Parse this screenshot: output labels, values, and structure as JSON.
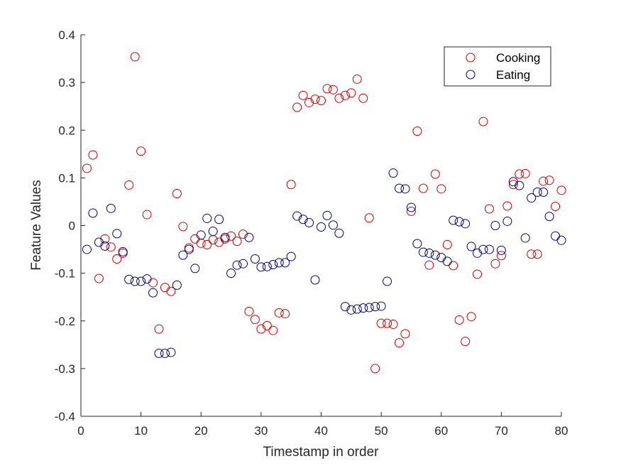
{
  "chart_data": {
    "type": "scatter",
    "title": "",
    "xlabel": "Timestamp in order",
    "ylabel": "Feature Values",
    "xlim": [
      0,
      80
    ],
    "ylim": [
      -0.4,
      0.4
    ],
    "xticks": [
      0,
      10,
      20,
      30,
      40,
      50,
      60,
      70,
      80
    ],
    "yticks": [
      -0.4,
      -0.3,
      -0.2,
      -0.1,
      0,
      0.1,
      0.2,
      0.3,
      0.4
    ],
    "xtick_labels": [
      "0",
      "10",
      "20",
      "30",
      "40",
      "50",
      "60",
      "70",
      "80"
    ],
    "ytick_labels": [
      "-0.4",
      "-0.3",
      "-0.2",
      "-0.1",
      "0",
      "0.1",
      "0.2",
      "0.3",
      "0.4"
    ],
    "grid": false,
    "legend_position": "top-right",
    "marker": "open-circle",
    "series": [
      {
        "name": "Cooking",
        "color": "#cc0000",
        "x": [
          1,
          2,
          3,
          4,
          5,
          6,
          7,
          8,
          9,
          10,
          11,
          12,
          13,
          14,
          15,
          16,
          17,
          18,
          19,
          20,
          21,
          22,
          23,
          24,
          25,
          26,
          27,
          28,
          29,
          30,
          31,
          32,
          33,
          34,
          35,
          36,
          37,
          38,
          39,
          40,
          41,
          42,
          43,
          44,
          45,
          46,
          47,
          48,
          49,
          50,
          51,
          52,
          53,
          54,
          55,
          56,
          57,
          58,
          59,
          60,
          61,
          62,
          63,
          64,
          65,
          66,
          67,
          68,
          69,
          70,
          71,
          72,
          73,
          74,
          75,
          76,
          77,
          78,
          79,
          80
        ],
        "y": [
          0.12,
          0.148,
          -0.111,
          -0.028,
          -0.045,
          -0.07,
          -0.058,
          0.085,
          0.354,
          0.156,
          0.023,
          -0.12,
          -0.217,
          -0.13,
          -0.138,
          0.067,
          -0.002,
          -0.047,
          -0.028,
          -0.037,
          -0.04,
          -0.03,
          -0.035,
          -0.028,
          -0.022,
          -0.033,
          -0.018,
          -0.18,
          -0.197,
          -0.217,
          -0.21,
          -0.22,
          -0.183,
          -0.185,
          0.086,
          0.248,
          0.273,
          0.258,
          0.265,
          0.262,
          0.287,
          0.285,
          0.267,
          0.273,
          0.278,
          0.307,
          0.267,
          0.016,
          -0.3,
          -0.205,
          -0.205,
          -0.207,
          -0.246,
          -0.227,
          0.03,
          0.198,
          0.078,
          -0.083,
          0.108,
          0.077,
          -0.04,
          -0.084,
          -0.198,
          -0.243,
          -0.191,
          -0.102,
          0.218,
          0.035,
          -0.08,
          -0.063,
          0.041,
          0.086,
          0.108,
          0.109,
          -0.06,
          -0.06,
          0.093,
          0.095,
          0.04,
          0.074
        ]
      },
      {
        "name": "Eating",
        "color": "#000080",
        "x": [
          1,
          2,
          3,
          4,
          5,
          6,
          7,
          8,
          9,
          10,
          11,
          12,
          13,
          14,
          15,
          16,
          17,
          18,
          19,
          20,
          21,
          22,
          23,
          24,
          25,
          26,
          27,
          28,
          29,
          30,
          31,
          32,
          33,
          34,
          35,
          36,
          37,
          38,
          39,
          40,
          41,
          42,
          43,
          44,
          45,
          46,
          47,
          48,
          49,
          50,
          51,
          52,
          53,
          54,
          55,
          56,
          57,
          58,
          59,
          60,
          61,
          62,
          63,
          64,
          65,
          66,
          67,
          68,
          69,
          70,
          71,
          72,
          73,
          74,
          75,
          76,
          77,
          78,
          79,
          80
        ],
        "y": [
          -0.05,
          0.026,
          -0.035,
          -0.043,
          0.036,
          -0.017,
          -0.055,
          -0.113,
          -0.117,
          -0.117,
          -0.112,
          -0.141,
          -0.268,
          -0.268,
          -0.266,
          -0.125,
          -0.062,
          -0.05,
          -0.09,
          -0.02,
          0.015,
          -0.012,
          0.013,
          -0.025,
          -0.1,
          -0.083,
          -0.08,
          -0.025,
          -0.07,
          -0.087,
          -0.086,
          -0.082,
          -0.078,
          -0.078,
          -0.065,
          0.02,
          0.013,
          0.006,
          -0.114,
          -0.003,
          0.021,
          0.001,
          -0.016,
          -0.17,
          -0.177,
          -0.175,
          -0.173,
          -0.172,
          -0.17,
          -0.169,
          -0.117,
          0.11,
          0.078,
          0.077,
          0.038,
          -0.038,
          -0.056,
          -0.058,
          -0.062,
          -0.067,
          -0.075,
          0.011,
          0.008,
          0.004,
          -0.044,
          -0.058,
          -0.05,
          -0.05,
          0.0,
          -0.052,
          0.009,
          0.092,
          0.084,
          -0.026,
          0.058,
          0.07,
          0.07,
          0.019,
          -0.022,
          -0.031
        ]
      }
    ]
  }
}
